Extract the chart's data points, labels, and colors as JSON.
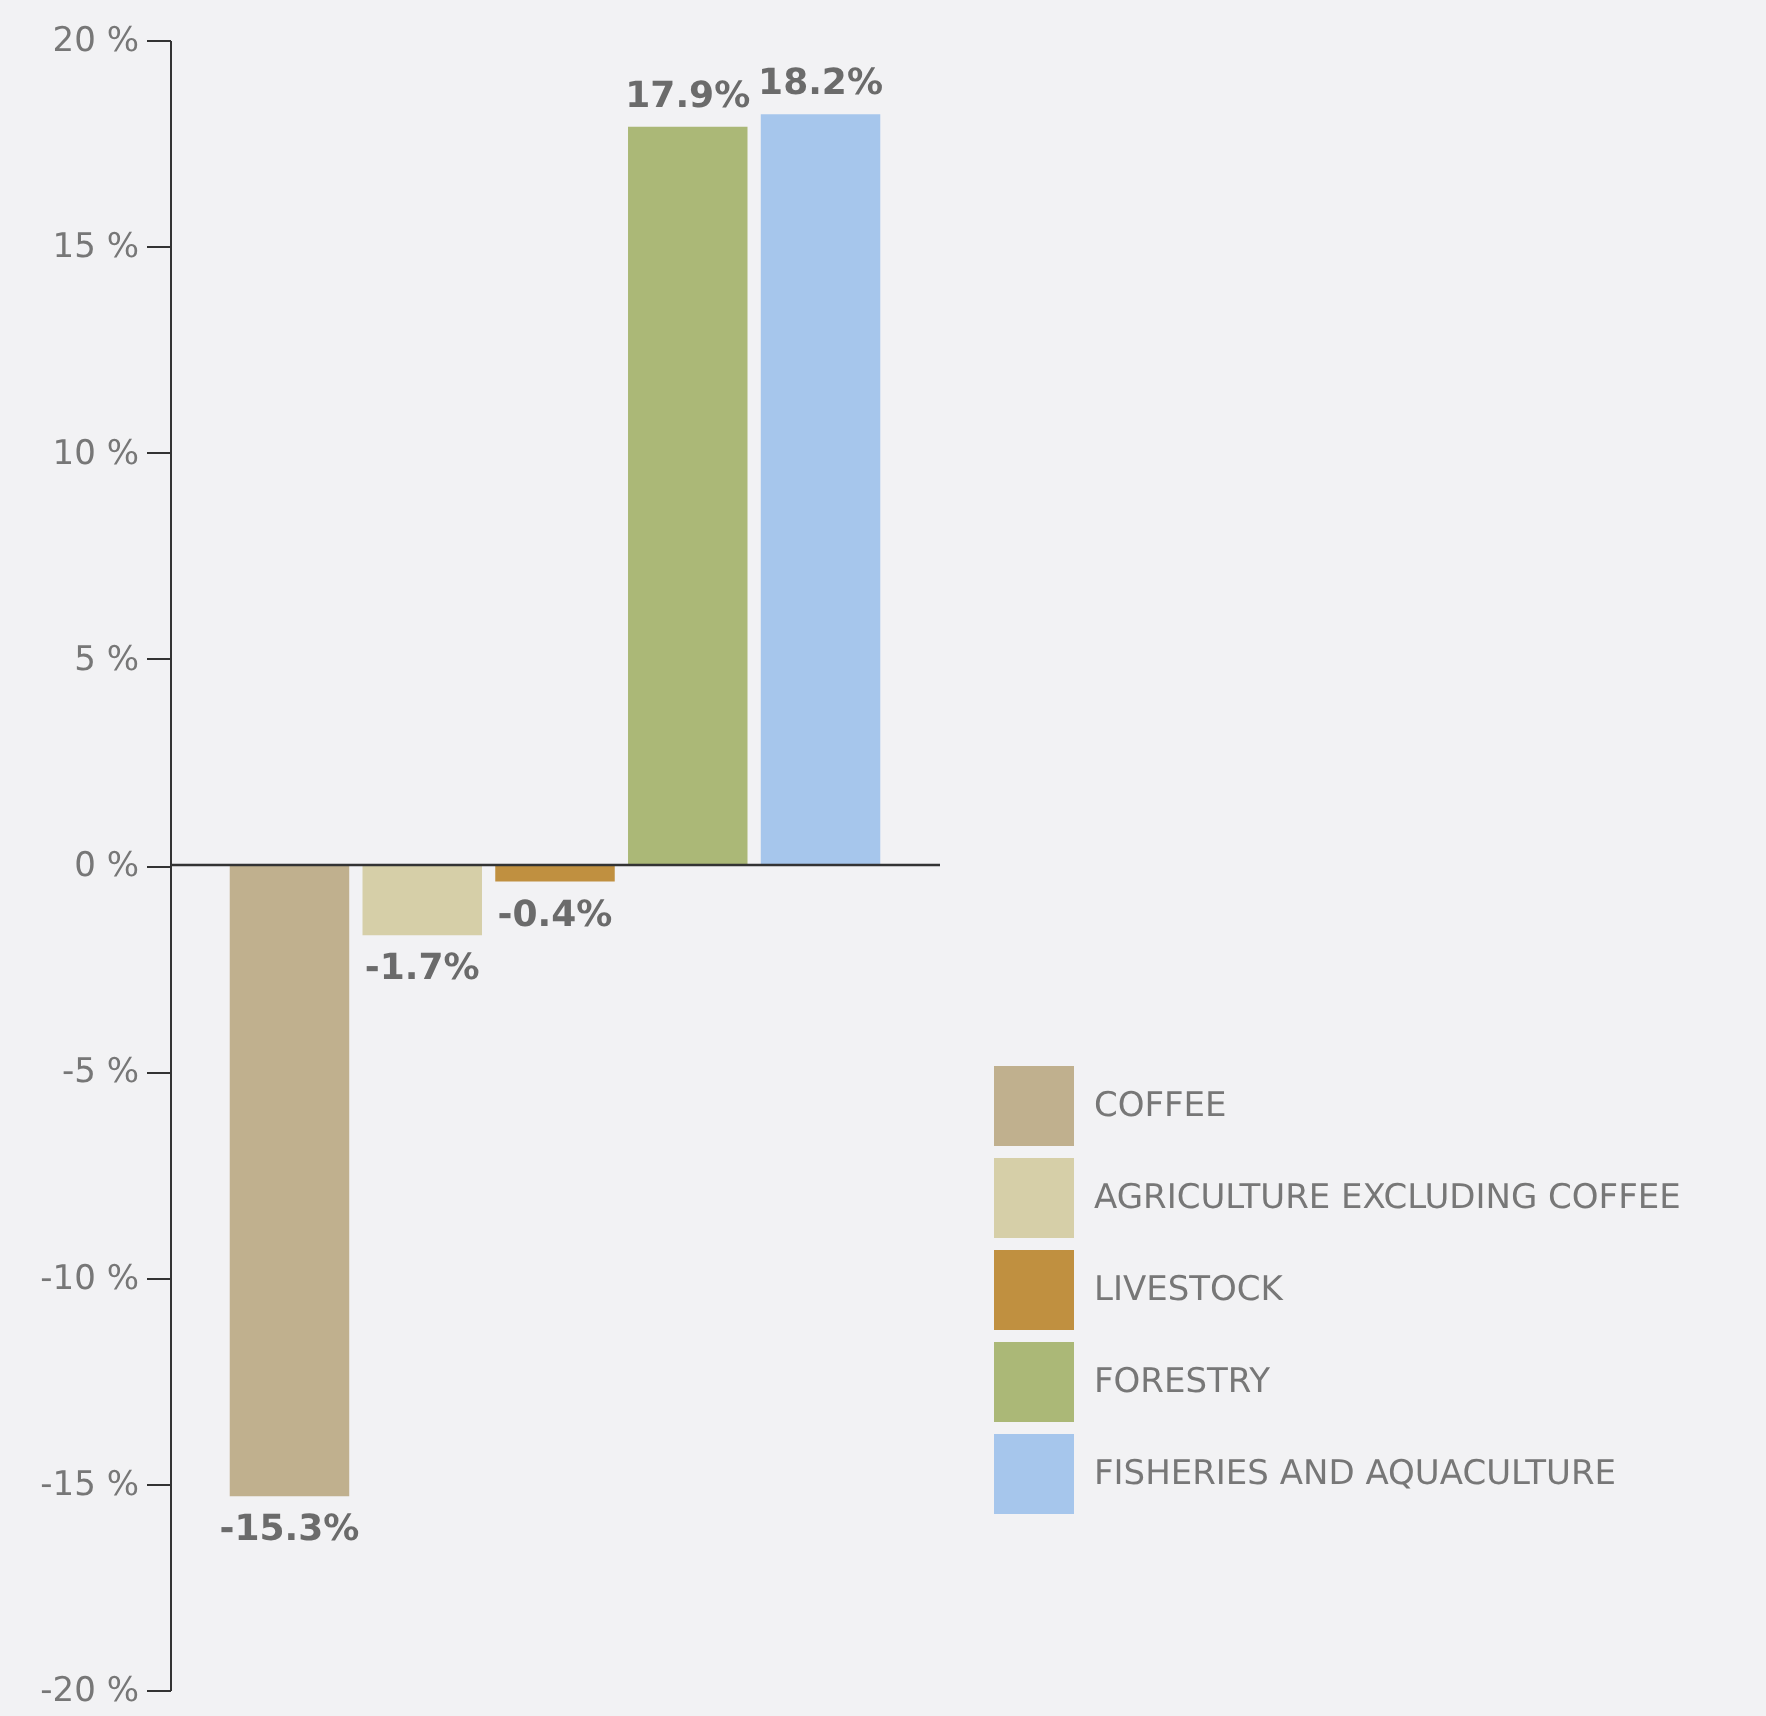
{
  "chart_data": {
    "type": "bar",
    "categories": [
      null,
      null,
      null,
      null,
      null
    ],
    "series": [
      {
        "name": "COFFEE",
        "color": "#c0b08e",
        "values": [
          -15.3,
          null,
          null,
          null,
          null
        ],
        "value_labels": [
          "-15.3%",
          null,
          null,
          null,
          null
        ]
      },
      {
        "name": "AGRICULTURE EXCLUDING COFFEE",
        "color": "#d6cfa8",
        "values": [
          null,
          -1.7,
          null,
          null,
          null
        ],
        "value_labels": [
          null,
          "-1.7%",
          null,
          null,
          null
        ]
      },
      {
        "name": "LIVESTOCK",
        "color": "#c09040",
        "values": [
          null,
          null,
          -0.4,
          null,
          null
        ],
        "value_labels": [
          null,
          null,
          "-0.4%",
          null,
          null
        ]
      },
      {
        "name": "FORESTRY",
        "color": "#abb877",
        "values": [
          null,
          null,
          null,
          17.9,
          null
        ],
        "value_labels": [
          null,
          null,
          null,
          "17.9%",
          null
        ]
      },
      {
        "name": "FISHERIES AND AQUACULTURE",
        "color": "#a6c6ec",
        "values": [
          null,
          null,
          null,
          null,
          18.2
        ],
        "value_labels": [
          null,
          null,
          null,
          null,
          "18.2%"
        ]
      }
    ],
    "ylim": [
      -20,
      20
    ],
    "yticks": [
      {
        "value": -20,
        "label": "-20 %"
      },
      {
        "value": -15,
        "label": "-15 %"
      },
      {
        "value": -10,
        "label": "-10 %"
      },
      {
        "value": -5,
        "label": "-5 %"
      },
      {
        "value": 0,
        "label": "0 %"
      },
      {
        "value": 5,
        "label": "5 %"
      },
      {
        "value": 10,
        "label": "10 %"
      },
      {
        "value": 15,
        "label": "15 %"
      },
      {
        "value": 20,
        "label": "20 %"
      }
    ],
    "ref_lines": [
      {
        "axis": "y",
        "value": 0,
        "color": "#333333"
      }
    ],
    "grid": false,
    "legend": "right"
  }
}
